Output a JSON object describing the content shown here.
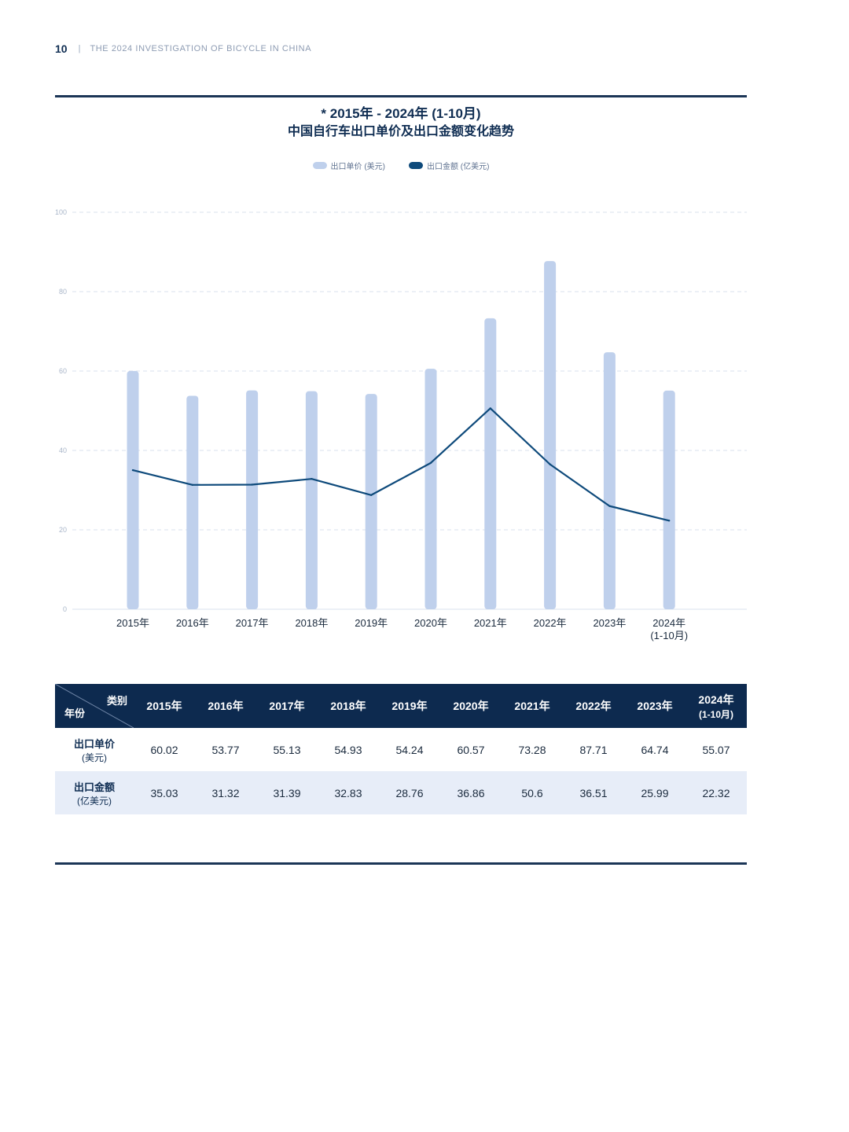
{
  "header": {
    "page_number": "10",
    "separator": "|",
    "title": "THE 2024 INVESTIGATION OF BICYCLE IN CHINA"
  },
  "chart_title": {
    "line1": "* 2015年 - 2024年 (1-10月)",
    "line2": "中国自行车出口单价及出口金额变化趋势"
  },
  "legend": {
    "bar": "出口单价 (美元)",
    "line": "出口金额 (亿美元)"
  },
  "colors": {
    "bar": "#bfd0ec",
    "line": "#0e4a7b",
    "header_bg": "#0d2a4f",
    "alt_row": "#e7edf8"
  },
  "chart_data": {
    "type": "bar",
    "categories": [
      "2015年",
      "2016年",
      "2017年",
      "2018年",
      "2019年",
      "2020年",
      "2021年",
      "2022年",
      "2023年",
      "2024年 (1-10月)"
    ],
    "category_labels": [
      [
        "2015年"
      ],
      [
        "2016年"
      ],
      [
        "2017年"
      ],
      [
        "2018年"
      ],
      [
        "2019年"
      ],
      [
        "2020年"
      ],
      [
        "2021年"
      ],
      [
        "2022年"
      ],
      [
        "2023年"
      ],
      [
        "2024年",
        "(1-10月)"
      ]
    ],
    "series": [
      {
        "name": "出口单价 (美元)",
        "kind": "bar",
        "values": [
          60.02,
          53.77,
          55.13,
          54.93,
          54.24,
          60.57,
          73.28,
          87.71,
          64.74,
          55.07
        ]
      },
      {
        "name": "出口金额 (亿美元)",
        "kind": "line",
        "values": [
          35.03,
          31.32,
          31.39,
          32.83,
          28.76,
          36.86,
          50.6,
          36.51,
          25.99,
          22.32
        ]
      }
    ],
    "ylim": [
      0,
      100
    ],
    "yticks": [
      0,
      20,
      40,
      60,
      80,
      100
    ],
    "grid": true,
    "legend_position": "top-center"
  },
  "table": {
    "corner_top": "类别",
    "corner_bottom": "年份",
    "columns": [
      [
        "2015年"
      ],
      [
        "2016年"
      ],
      [
        "2017年"
      ],
      [
        "2018年"
      ],
      [
        "2019年"
      ],
      [
        "2020年"
      ],
      [
        "2021年"
      ],
      [
        "2022年"
      ],
      [
        "2023年"
      ],
      [
        "2024年",
        "(1-10月)"
      ]
    ],
    "rows": [
      {
        "label": "出口单价",
        "unit": "(美元)",
        "values": [
          "60.02",
          "53.77",
          "55.13",
          "54.93",
          "54.24",
          "60.57",
          "73.28",
          "87.71",
          "64.74",
          "55.07"
        ]
      },
      {
        "label": "出口金额",
        "unit": "(亿美元)",
        "values": [
          "35.03",
          "31.32",
          "31.39",
          "32.83",
          "28.76",
          "36.86",
          "50.6",
          "36.51",
          "25.99",
          "22.32"
        ]
      }
    ]
  }
}
